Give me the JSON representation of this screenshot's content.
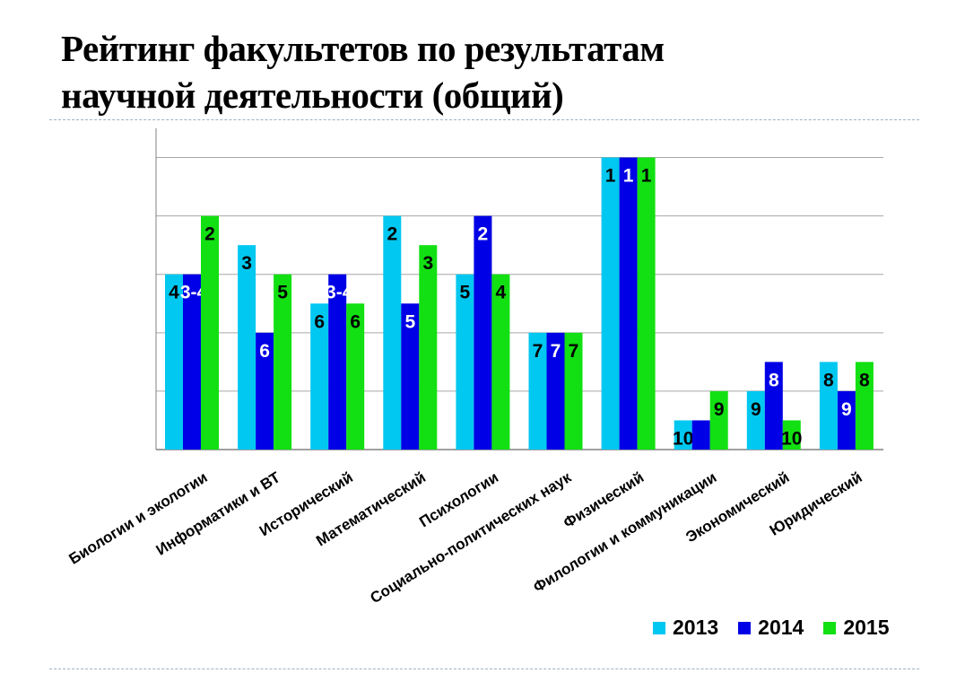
{
  "title_line1": "Рейтинг факультетов по результатам",
  "title_line2": "научной деятельности (общий)",
  "chart_data": {
    "type": "bar",
    "categories": [
      "Биологии и экологии",
      "Информатики и ВТ",
      "Исторический",
      "Математический",
      "Психологии",
      "Социально-политических наук",
      "Физический",
      "Филологии и коммуникации",
      "Экономический",
      "Юридический"
    ],
    "series": [
      {
        "name": "2013",
        "color": "#00c8f0",
        "values": [
          6,
          7,
          5,
          8,
          6,
          4,
          10,
          1,
          2,
          3
        ],
        "labels": [
          "4",
          "3",
          "6",
          "2",
          "5",
          "7",
          "1",
          "10",
          "9",
          "8"
        ]
      },
      {
        "name": "2014",
        "color": "#0000e6",
        "values": [
          6,
          4,
          6,
          5,
          8,
          4,
          10,
          1,
          3,
          2
        ],
        "labels": [
          "3-4",
          "6",
          "3-4",
          "5",
          "2",
          "7",
          "1",
          "",
          "8",
          "9"
        ]
      },
      {
        "name": "2015",
        "color": "#12e012",
        "values": [
          8,
          6,
          5,
          7,
          6,
          4,
          10,
          2,
          1,
          3
        ],
        "labels": [
          "2",
          "5",
          "6",
          "3",
          "4",
          "7",
          "1",
          "9",
          "10",
          "8"
        ]
      }
    ],
    "ylim": [
      0,
      11
    ],
    "grid": true,
    "legend_position": "bottom-right"
  },
  "legend": [
    {
      "label": "2013",
      "color": "#00c8f0"
    },
    {
      "label": "2014",
      "color": "#0000e6"
    },
    {
      "label": "2015",
      "color": "#12e012"
    }
  ]
}
